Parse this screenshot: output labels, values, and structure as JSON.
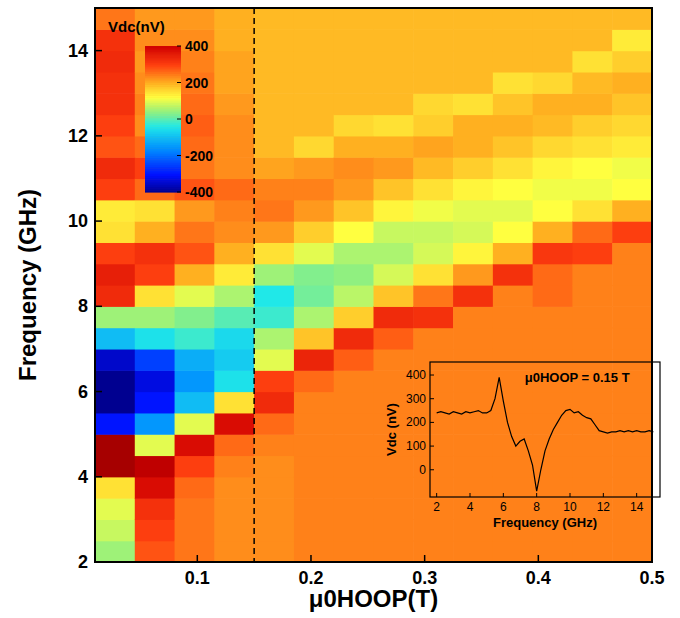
{
  "chart_data": [
    {
      "type": "heatmap",
      "xlabel": "μ0HOOP(T)",
      "ylabel": "Frequency (GHz)",
      "xlim": [
        0.01,
        0.5
      ],
      "ylim": [
        2,
        15
      ],
      "xticks": [
        0.1,
        0.2,
        0.3,
        0.4,
        0.5
      ],
      "yticks": [
        2,
        4,
        6,
        8,
        10,
        12,
        14
      ],
      "x_edges": [
        0.01,
        0.045,
        0.08,
        0.115,
        0.15,
        0.185,
        0.22,
        0.255,
        0.29,
        0.325,
        0.36,
        0.395,
        0.43,
        0.465,
        0.5
      ],
      "y_edges": [
        2,
        2.5,
        3,
        3.5,
        4,
        4.5,
        5,
        5.5,
        6,
        6.5,
        7,
        7.5,
        8,
        8.5,
        9,
        9.5,
        10,
        10.5,
        11,
        11.5,
        12,
        12.5,
        13,
        13.5,
        14,
        14.5,
        15
      ],
      "z": [
        [
          50,
          80,
          100,
          150,
          450,
          450,
          -300,
          -420,
          -420,
          -350,
          -100,
          50,
          330,
          350,
          300,
          150,
          140,
          300,
          330,
          280,
          300,
          320,
          320,
          330,
          320,
          250
        ],
        [
          280,
          300,
          320,
          380,
          420,
          100,
          -150,
          -300,
          -330,
          -250,
          -50,
          50,
          150,
          300,
          320,
          200,
          150,
          260,
          300,
          260,
          230,
          240,
          230,
          220,
          230,
          220
        ],
        [
          250,
          250,
          250,
          260,
          300,
          380,
          100,
          -100,
          -150,
          -120,
          -20,
          30,
          100,
          200,
          280,
          250,
          220,
          280,
          250,
          260,
          270,
          260,
          250,
          240,
          230,
          220
        ],
        [
          230,
          230,
          230,
          230,
          240,
          260,
          380,
          150,
          -50,
          -80,
          -60,
          0,
          60,
          140,
          200,
          230,
          240,
          260,
          230,
          230,
          230,
          220,
          210,
          210,
          200,
          200
        ],
        [
          230,
          230,
          230,
          230,
          230,
          240,
          260,
          330,
          300,
          100,
          60,
          -20,
          -40,
          50,
          150,
          220,
          250,
          240,
          210,
          190,
          190,
          190,
          190,
          190,
          190,
          190
        ],
        [
          240,
          240,
          240,
          240,
          240,
          240,
          240,
          240,
          260,
          340,
          180,
          60,
          20,
          30,
          100,
          170,
          220,
          240,
          220,
          160,
          190,
          190,
          190,
          190,
          190,
          190
        ],
        [
          240,
          240,
          240,
          240,
          240,
          240,
          240,
          240,
          240,
          270,
          330,
          170,
          70,
          40,
          60,
          120,
          180,
          220,
          230,
          200,
          160,
          190,
          190,
          190,
          190,
          190
        ],
        [
          240,
          240,
          240,
          240,
          240,
          240,
          240,
          240,
          240,
          240,
          270,
          330,
          180,
          90,
          60,
          80,
          130,
          180,
          220,
          200,
          150,
          190,
          190,
          190,
          190,
          190
        ],
        [
          240,
          240,
          240,
          240,
          240,
          240,
          240,
          240,
          240,
          240,
          240,
          320,
          250,
          150,
          90,
          80,
          110,
          150,
          190,
          210,
          170,
          160,
          190,
          190,
          190,
          190
        ],
        [
          240,
          240,
          240,
          240,
          240,
          240,
          240,
          240,
          240,
          240,
          240,
          240,
          320,
          220,
          130,
          90,
          100,
          130,
          170,
          200,
          200,
          150,
          190,
          190,
          190,
          190
        ],
        [
          240,
          240,
          240,
          240,
          240,
          240,
          240,
          240,
          240,
          240,
          240,
          240,
          240,
          320,
          200,
          120,
          100,
          120,
          150,
          180,
          200,
          180,
          150,
          190,
          190,
          190
        ],
        [
          240,
          240,
          240,
          240,
          240,
          240,
          240,
          240,
          240,
          240,
          240,
          240,
          260,
          260,
          310,
          200,
          120,
          110,
          130,
          160,
          190,
          200,
          160,
          190,
          190,
          190
        ],
        [
          240,
          240,
          240,
          240,
          240,
          240,
          240,
          240,
          240,
          240,
          240,
          240,
          240,
          240,
          300,
          260,
          150,
          110,
          120,
          150,
          170,
          200,
          190,
          150,
          190,
          190
        ],
        [
          240,
          240,
          240,
          240,
          240,
          240,
          240,
          240,
          240,
          240,
          240,
          240,
          240,
          240,
          240,
          300,
          200,
          120,
          110,
          140,
          160,
          180,
          200,
          170,
          140,
          190
        ]
      ],
      "colorbar": {
        "label": "Vdc(nV)",
        "range": [
          -400,
          400
        ],
        "ticks": [
          -400,
          -200,
          0,
          200,
          400
        ]
      },
      "vline": 0.15
    },
    {
      "type": "line",
      "xlabel": "Frequency (GHz)",
      "ylabel": "Vdc (nV)",
      "annotation": "μ0HOOP = 0.15 T",
      "color": "#000000",
      "xlim": [
        1.6,
        15.4
      ],
      "ylim": [
        -115,
        455
      ],
      "xticks": [
        2,
        4,
        6,
        8,
        10,
        12,
        14
      ],
      "yticks": [
        0,
        100,
        200,
        300,
        400
      ],
      "x": [
        2,
        2.25,
        2.5,
        2.75,
        3,
        3.25,
        3.5,
        3.75,
        4,
        4.25,
        4.5,
        4.75,
        5,
        5.25,
        5.5,
        5.75,
        6,
        6.25,
        6.5,
        6.75,
        7,
        7.25,
        7.5,
        7.75,
        8,
        8.25,
        8.5,
        8.75,
        9,
        9.25,
        9.5,
        9.75,
        10,
        10.25,
        10.5,
        10.75,
        11,
        11.25,
        11.5,
        11.75,
        12,
        12.25,
        12.5,
        12.75,
        13,
        13.25,
        13.5,
        13.75,
        14,
        14.25,
        14.5,
        14.75,
        15
      ],
      "values": [
        240,
        245,
        240,
        235,
        245,
        240,
        235,
        245,
        240,
        245,
        250,
        240,
        240,
        250,
        300,
        390,
        290,
        200,
        140,
        100,
        120,
        130,
        80,
        20,
        -90,
        0,
        80,
        130,
        170,
        200,
        230,
        250,
        255,
        240,
        245,
        230,
        220,
        215,
        190,
        165,
        160,
        155,
        160,
        160,
        165,
        160,
        165,
        160,
        165,
        160,
        160,
        165,
        160
      ]
    }
  ]
}
